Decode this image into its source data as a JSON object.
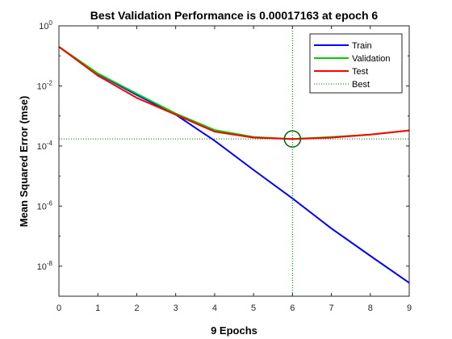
{
  "chart_data": {
    "type": "line",
    "title": "Best Validation Performance is 0.00017163 at epoch 6",
    "xlabel": "9 Epochs",
    "ylabel": "Mean Squared Error  (mse)",
    "xlim": [
      0,
      9
    ],
    "ylim_log10": [
      -9,
      0
    ],
    "yscale": "log",
    "x_ticks": [
      "0",
      "1",
      "2",
      "3",
      "4",
      "5",
      "6",
      "7",
      "8",
      "9"
    ],
    "y_ticks": [
      {
        "base": "10",
        "exp": "0"
      },
      {
        "base": "10",
        "exp": "-2"
      },
      {
        "base": "10",
        "exp": "-4"
      },
      {
        "base": "10",
        "exp": "-6"
      },
      {
        "base": "10",
        "exp": "-8"
      }
    ],
    "x": [
      0,
      1,
      2,
      3,
      4,
      5,
      6,
      7,
      8,
      9
    ],
    "series": [
      {
        "name": "Train",
        "color": "#0000ff",
        "values": [
          0.2,
          0.025,
          0.005,
          0.0011,
          0.00015,
          1.6e-05,
          1.8e-06,
          1.8e-07,
          2.2e-08,
          2.8e-09
        ]
      },
      {
        "name": "Validation",
        "color": "#00cc00",
        "values": [
          0.2,
          0.026,
          0.0055,
          0.0012,
          0.00034,
          0.0002,
          0.00017163,
          0.0002,
          0.00024,
          0.00033
        ]
      },
      {
        "name": "Test",
        "color": "#ff0000",
        "values": [
          0.2,
          0.022,
          0.004,
          0.0011,
          0.0003,
          0.00019,
          0.00017,
          0.00019,
          0.00024,
          0.00033
        ]
      }
    ],
    "best": {
      "name": "Best",
      "epoch": 6,
      "value": 0.00017163,
      "color": "#007700",
      "marker_color": "#006600"
    },
    "legend_placement": "top-right",
    "grid": false
  }
}
